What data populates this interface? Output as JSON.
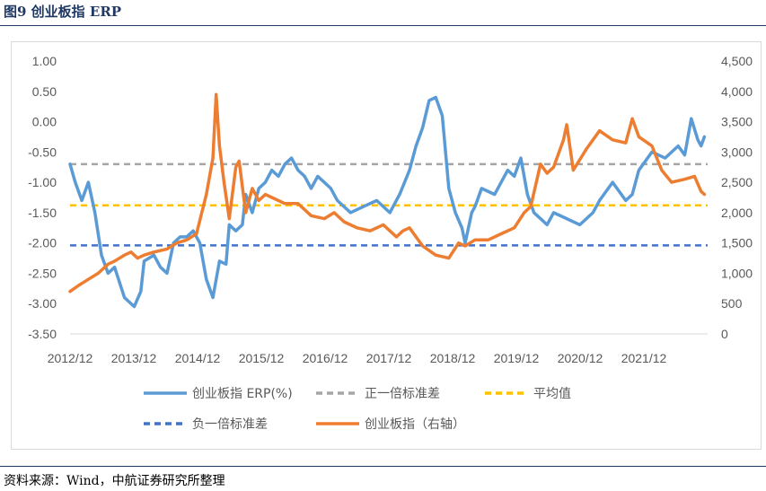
{
  "figure": {
    "title": "图9  创业板指 ERP",
    "source": "资料来源：Wind，中航证券研究所整理"
  },
  "chart_data": {
    "type": "line",
    "title": "图9  创业板指 ERP",
    "x_tick_labels": [
      "2012/12",
      "2013/12",
      "2014/12",
      "2015/12",
      "2016/12",
      "2017/12",
      "2018/12",
      "2019/12",
      "2020/12",
      "2021/12"
    ],
    "ylim_left": [
      -3.5,
      1.0
    ],
    "y_ticks_left": [
      "1.00",
      "0.50",
      "0.00",
      "-0.50",
      "-1.00",
      "-1.50",
      "-2.00",
      "-2.50",
      "-3.00",
      "-3.50"
    ],
    "ylim_right": [
      0,
      4500
    ],
    "y_ticks_right": [
      "4,500",
      "4,000",
      "3,500",
      "3,000",
      "2,500",
      "2,000",
      "1,500",
      "1,000",
      "500",
      "0"
    ],
    "grid": false,
    "legend_position": "bottom",
    "series": [
      {
        "name": "创业板指 ERP(%)",
        "axis": "left",
        "color": "#5b9bd5",
        "style": "solid",
        "x": [
          2012.92,
          2013.0,
          2013.1,
          2013.2,
          2013.3,
          2013.4,
          2013.5,
          2013.6,
          2013.75,
          2013.9,
          2014.0,
          2014.05,
          2014.2,
          2014.3,
          2014.4,
          2014.5,
          2014.6,
          2014.7,
          2014.8,
          2014.9,
          2015.0,
          2015.1,
          2015.2,
          2015.3,
          2015.35,
          2015.45,
          2015.55,
          2015.6,
          2015.7,
          2015.8,
          2015.9,
          2016.0,
          2016.1,
          2016.2,
          2016.3,
          2016.4,
          2016.5,
          2016.6,
          2016.7,
          2016.8,
          2016.9,
          2017.0,
          2017.2,
          2017.4,
          2017.6,
          2017.8,
          2017.95,
          2018.1,
          2018.2,
          2018.3,
          2018.4,
          2018.5,
          2018.6,
          2018.7,
          2018.8,
          2018.9,
          2018.95,
          2019.05,
          2019.1,
          2019.2,
          2019.4,
          2019.5,
          2019.6,
          2019.7,
          2019.8,
          2019.9,
          2020.0,
          2020.1,
          2020.2,
          2020.3,
          2020.5,
          2020.7,
          2020.9,
          2021.0,
          2021.2,
          2021.4,
          2021.5,
          2021.6,
          2021.8,
          2022.0,
          2022.2,
          2022.3,
          2022.4,
          2022.5,
          2022.55,
          2022.6
        ],
        "values": [
          -0.7,
          -1.0,
          -1.3,
          -1.0,
          -1.5,
          -2.2,
          -2.5,
          -2.4,
          -2.9,
          -3.05,
          -2.8,
          -2.3,
          -2.2,
          -2.4,
          -2.5,
          -2.0,
          -1.9,
          -1.9,
          -1.8,
          -2.0,
          -2.6,
          -2.9,
          -2.3,
          -2.35,
          -1.7,
          -1.8,
          -1.7,
          -1.2,
          -1.5,
          -1.1,
          -1.0,
          -0.8,
          -0.9,
          -0.7,
          -0.6,
          -0.8,
          -0.9,
          -1.1,
          -0.9,
          -1.0,
          -1.1,
          -1.3,
          -1.5,
          -1.4,
          -1.3,
          -1.5,
          -1.2,
          -0.8,
          -0.4,
          -0.1,
          0.35,
          0.4,
          0.1,
          -1.1,
          -1.5,
          -1.75,
          -2.0,
          -1.5,
          -1.4,
          -1.1,
          -1.2,
          -1.0,
          -0.8,
          -0.9,
          -0.6,
          -1.2,
          -1.5,
          -1.6,
          -1.7,
          -1.5,
          -1.6,
          -1.7,
          -1.5,
          -1.3,
          -1.0,
          -1.3,
          -1.2,
          -0.8,
          -0.5,
          -0.6,
          -0.4,
          -0.55,
          0.05,
          -0.3,
          -0.4,
          -0.25
        ]
      },
      {
        "name": "正一倍标准差",
        "axis": "left",
        "color": "#a5a5a5",
        "style": "dashed",
        "value": -0.7
      },
      {
        "name": "平均值",
        "axis": "left",
        "color": "#ffc000",
        "style": "dashed",
        "value": -1.38
      },
      {
        "name": "负一倍标准差",
        "axis": "left",
        "color": "#4472c4",
        "style": "dashed",
        "value": -2.04
      },
      {
        "name": "创业板指（右轴）",
        "axis": "right",
        "color": "#ed7d31",
        "style": "solid",
        "x": [
          2012.92,
          2013.05,
          2013.2,
          2013.35,
          2013.5,
          2013.6,
          2013.75,
          2013.85,
          2013.95,
          2014.05,
          2014.2,
          2014.4,
          2014.55,
          2014.7,
          2014.85,
          2015.0,
          2015.1,
          2015.15,
          2015.2,
          2015.27,
          2015.35,
          2015.45,
          2015.5,
          2015.6,
          2015.7,
          2015.8,
          2015.9,
          2016.0,
          2016.2,
          2016.4,
          2016.6,
          2016.8,
          2016.95,
          2017.1,
          2017.3,
          2017.5,
          2017.7,
          2017.9,
          2018.0,
          2018.1,
          2018.3,
          2018.5,
          2018.7,
          2018.85,
          2018.95,
          2019.1,
          2019.3,
          2019.5,
          2019.7,
          2019.85,
          2019.95,
          2020.1,
          2020.2,
          2020.3,
          2020.45,
          2020.5,
          2020.6,
          2020.8,
          2021.0,
          2021.2,
          2021.4,
          2021.5,
          2021.6,
          2021.8,
          2021.95,
          2022.1,
          2022.3,
          2022.45,
          2022.55,
          2022.6
        ],
        "values": [
          700,
          800,
          900,
          1000,
          1150,
          1200,
          1300,
          1350,
          1250,
          1300,
          1350,
          1400,
          1500,
          1550,
          1650,
          2300,
          2900,
          3950,
          3100,
          2500,
          1900,
          2750,
          2850,
          2000,
          2400,
          2200,
          2300,
          2250,
          2150,
          2150,
          1950,
          1900,
          2000,
          1850,
          1750,
          1700,
          1800,
          1600,
          1700,
          1750,
          1450,
          1300,
          1250,
          1500,
          1450,
          1550,
          1550,
          1650,
          1750,
          2000,
          2100,
          2800,
          2650,
          2750,
          3200,
          3450,
          2700,
          3050,
          3350,
          3200,
          3150,
          3550,
          3250,
          3100,
          2700,
          2500,
          2550,
          2600,
          2350,
          2300
        ]
      }
    ]
  }
}
